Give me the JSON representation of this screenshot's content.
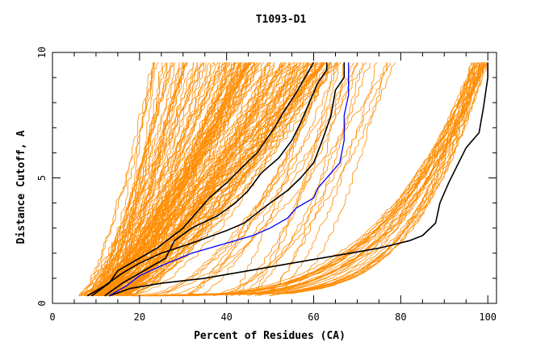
{
  "chart_data": {
    "type": "line",
    "title": "T1093-D1",
    "xlabel": "Percent of Residues (CA)",
    "ylabel": "Distance Cutoff, A",
    "xlim": [
      0,
      102
    ],
    "ylim": [
      0,
      10
    ],
    "x_ticks": [
      "0",
      "20",
      "40",
      "60",
      "80",
      "100"
    ],
    "y_ticks": [
      "0",
      "5",
      "10"
    ],
    "grid": false,
    "legend": "none",
    "colors": {
      "bundle": "#ff8c00",
      "highlight": "#000000",
      "blue": "#0000ff"
    },
    "series": [
      {
        "color": "#000000",
        "points": [
          [
            13,
            0.3
          ],
          [
            18,
            0.6
          ],
          [
            25,
            0.8
          ],
          [
            35,
            1.0
          ],
          [
            45,
            1.3
          ],
          [
            55,
            1.6
          ],
          [
            65,
            1.9
          ],
          [
            75,
            2.2
          ],
          [
            82,
            2.5
          ],
          [
            85,
            2.7
          ],
          [
            88,
            3.2
          ],
          [
            89,
            4.0
          ],
          [
            91,
            4.8
          ],
          [
            93,
            5.5
          ],
          [
            95,
            6.2
          ],
          [
            98,
            6.8
          ],
          [
            99,
            7.8
          ],
          [
            100,
            9.0
          ],
          [
            100,
            9.6
          ]
        ]
      },
      {
        "color": "#000000",
        "points": [
          [
            8,
            0.3
          ],
          [
            12,
            0.7
          ],
          [
            16,
            1.2
          ],
          [
            20,
            1.6
          ],
          [
            25,
            2.0
          ],
          [
            32,
            2.4
          ],
          [
            40,
            2.9
          ],
          [
            44,
            3.2
          ],
          [
            47,
            3.6
          ],
          [
            50,
            4.0
          ],
          [
            54,
            4.5
          ],
          [
            57,
            5.0
          ],
          [
            60,
            5.6
          ],
          [
            62,
            6.5
          ],
          [
            64,
            7.5
          ],
          [
            65,
            8.5
          ],
          [
            67,
            9.0
          ],
          [
            67,
            9.6
          ]
        ]
      },
      {
        "color": "#000000",
        "points": [
          [
            12,
            0.3
          ],
          [
            16,
            0.8
          ],
          [
            20,
            1.2
          ],
          [
            26,
            1.8
          ],
          [
            28,
            2.5
          ],
          [
            32,
            3.0
          ],
          [
            38,
            3.5
          ],
          [
            42,
            4.0
          ],
          [
            45,
            4.5
          ],
          [
            48,
            5.2
          ],
          [
            52,
            5.8
          ],
          [
            55,
            6.5
          ],
          [
            57,
            7.2
          ],
          [
            59,
            8.0
          ],
          [
            61,
            8.8
          ],
          [
            63,
            9.3
          ],
          [
            63,
            9.6
          ]
        ]
      },
      {
        "color": "#000000",
        "points": [
          [
            9,
            0.3
          ],
          [
            13,
            0.8
          ],
          [
            15,
            1.3
          ],
          [
            20,
            1.8
          ],
          [
            24,
            2.2
          ],
          [
            27,
            2.6
          ],
          [
            30,
            3.0
          ],
          [
            33,
            3.6
          ],
          [
            36,
            4.2
          ],
          [
            40,
            4.8
          ],
          [
            44,
            5.5
          ],
          [
            47,
            6.0
          ],
          [
            51,
            7.0
          ],
          [
            53,
            7.6
          ],
          [
            56,
            8.4
          ],
          [
            58,
            9.0
          ],
          [
            60,
            9.6
          ]
        ]
      },
      {
        "color": "#0000ff",
        "points": [
          [
            13,
            0.3
          ],
          [
            17,
            0.7
          ],
          [
            20,
            1.1
          ],
          [
            25,
            1.5
          ],
          [
            32,
            2.0
          ],
          [
            40,
            2.4
          ],
          [
            46,
            2.7
          ],
          [
            50,
            3.0
          ],
          [
            54,
            3.4
          ],
          [
            56,
            3.8
          ],
          [
            60,
            4.2
          ],
          [
            61,
            4.6
          ],
          [
            64,
            5.2
          ],
          [
            66,
            5.6
          ],
          [
            67,
            6.5
          ],
          [
            67,
            7.5
          ],
          [
            68,
            8.3
          ],
          [
            68,
            9.0
          ],
          [
            68,
            9.6
          ]
        ]
      }
    ]
  }
}
